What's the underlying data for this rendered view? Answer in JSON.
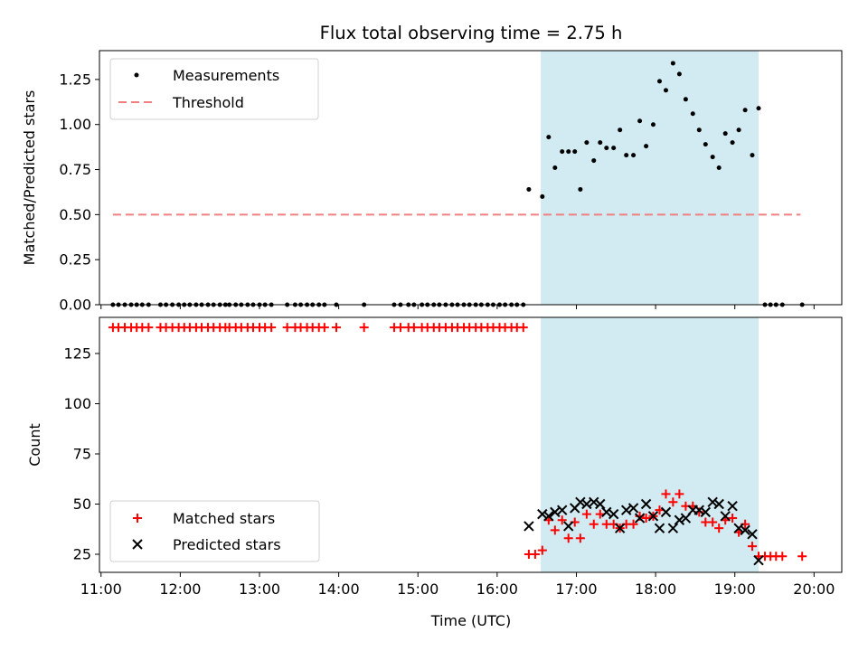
{
  "title": "Flux total observing time = 2.75 h",
  "colors": {
    "measure": "#000000",
    "threshold": "#f08080",
    "matched": "#ff0000",
    "predicted": "#000000",
    "band": "#add8e6"
  },
  "x_axis": {
    "label": "Time (UTC)",
    "range_hours": [
      10.98,
      20.35
    ],
    "ticks": [
      {
        "v": 11,
        "label": "11:00"
      },
      {
        "v": 12,
        "label": "12:00"
      },
      {
        "v": 13,
        "label": "13:00"
      },
      {
        "v": 14,
        "label": "14:00"
      },
      {
        "v": 15,
        "label": "15:00"
      },
      {
        "v": 16,
        "label": "16:00"
      },
      {
        "v": 17,
        "label": "17:00"
      },
      {
        "v": 18,
        "label": "18:00"
      },
      {
        "v": 19,
        "label": "19:00"
      },
      {
        "v": 20,
        "label": "20:00"
      }
    ]
  },
  "chart_data": [
    {
      "type": "scatter",
      "ylabel": "Matched/Predicted stars",
      "ylim": [
        0,
        1.41
      ],
      "yticks": [
        {
          "v": 0,
          "label": "0.00"
        },
        {
          "v": 0.25,
          "label": "0.25"
        },
        {
          "v": 0.5,
          "label": "0.50"
        },
        {
          "v": 0.75,
          "label": "0.75"
        },
        {
          "v": 1.0,
          "label": "1.00"
        },
        {
          "v": 1.25,
          "label": "1.25"
        }
      ],
      "observing_window": [
        16.55,
        19.3
      ],
      "threshold": {
        "name": "Threshold",
        "y": 0.5,
        "x": [
          11.15,
          19.83
        ]
      },
      "legend": [
        "Measurements",
        "Threshold"
      ],
      "legend_position": "top-left",
      "series": [
        {
          "name": "Measurements",
          "points": [
            [
              11.15,
              0
            ],
            [
              11.22,
              0
            ],
            [
              11.3,
              0
            ],
            [
              11.38,
              0
            ],
            [
              11.45,
              0
            ],
            [
              11.52,
              0
            ],
            [
              11.6,
              0
            ],
            [
              11.75,
              0
            ],
            [
              11.82,
              0
            ],
            [
              11.9,
              0
            ],
            [
              11.98,
              0
            ],
            [
              12.05,
              0
            ],
            [
              12.12,
              0
            ],
            [
              12.2,
              0
            ],
            [
              12.27,
              0
            ],
            [
              12.35,
              0
            ],
            [
              12.42,
              0
            ],
            [
              12.5,
              0
            ],
            [
              12.57,
              0
            ],
            [
              12.62,
              0
            ],
            [
              12.7,
              0
            ],
            [
              12.77,
              0
            ],
            [
              12.85,
              0
            ],
            [
              12.92,
              0
            ],
            [
              13.0,
              0
            ],
            [
              13.07,
              0
            ],
            [
              13.15,
              0
            ],
            [
              13.35,
              0
            ],
            [
              13.45,
              0
            ],
            [
              13.52,
              0
            ],
            [
              13.6,
              0
            ],
            [
              13.67,
              0
            ],
            [
              13.75,
              0
            ],
            [
              13.82,
              0
            ],
            [
              13.97,
              0
            ],
            [
              14.32,
              0
            ],
            [
              14.7,
              0
            ],
            [
              14.78,
              0
            ],
            [
              14.88,
              0
            ],
            [
              14.95,
              0
            ],
            [
              15.05,
              0
            ],
            [
              15.12,
              0
            ],
            [
              15.2,
              0
            ],
            [
              15.27,
              0
            ],
            [
              15.35,
              0
            ],
            [
              15.43,
              0
            ],
            [
              15.5,
              0
            ],
            [
              15.58,
              0
            ],
            [
              15.65,
              0
            ],
            [
              15.73,
              0
            ],
            [
              15.8,
              0
            ],
            [
              15.88,
              0
            ],
            [
              15.95,
              0
            ],
            [
              16.03,
              0
            ],
            [
              16.1,
              0
            ],
            [
              16.18,
              0
            ],
            [
              16.25,
              0
            ],
            [
              16.33,
              0
            ],
            [
              16.4,
              0.64
            ],
            [
              16.57,
              0.6
            ],
            [
              16.65,
              0.93
            ],
            [
              16.73,
              0.76
            ],
            [
              16.82,
              0.85
            ],
            [
              16.9,
              0.85
            ],
            [
              16.98,
              0.85
            ],
            [
              17.05,
              0.64
            ],
            [
              17.13,
              0.9
            ],
            [
              17.22,
              0.8
            ],
            [
              17.3,
              0.9
            ],
            [
              17.38,
              0.87
            ],
            [
              17.47,
              0.87
            ],
            [
              17.55,
              0.97
            ],
            [
              17.63,
              0.83
            ],
            [
              17.72,
              0.83
            ],
            [
              17.8,
              1.02
            ],
            [
              17.88,
              0.88
            ],
            [
              17.97,
              1.0
            ],
            [
              18.05,
              1.24
            ],
            [
              18.13,
              1.19
            ],
            [
              18.22,
              1.34
            ],
            [
              18.3,
              1.28
            ],
            [
              18.38,
              1.14
            ],
            [
              18.47,
              1.06
            ],
            [
              18.55,
              0.97
            ],
            [
              18.63,
              0.89
            ],
            [
              18.72,
              0.82
            ],
            [
              18.8,
              0.76
            ],
            [
              18.88,
              0.95
            ],
            [
              18.97,
              0.9
            ],
            [
              19.05,
              0.97
            ],
            [
              19.13,
              1.08
            ],
            [
              19.22,
              0.83
            ],
            [
              19.3,
              1.09
            ],
            [
              19.38,
              0
            ],
            [
              19.45,
              0
            ],
            [
              19.52,
              0
            ],
            [
              19.6,
              0
            ],
            [
              19.85,
              0
            ]
          ]
        }
      ]
    },
    {
      "type": "scatter",
      "ylabel": "Count",
      "xlabel": "Time (UTC)",
      "ylim": [
        16,
        143
      ],
      "yticks": [
        {
          "v": 25,
          "label": "25"
        },
        {
          "v": 50,
          "label": "50"
        },
        {
          "v": 75,
          "label": "75"
        },
        {
          "v": 100,
          "label": "100"
        },
        {
          "v": 125,
          "label": "125"
        }
      ],
      "observing_window": [
        16.55,
        19.3
      ],
      "legend": [
        "Matched stars",
        "Predicted stars"
      ],
      "legend_position": "bottom-left",
      "series": [
        {
          "name": "Matched stars",
          "points": [
            [
              11.15,
              138
            ],
            [
              11.22,
              138
            ],
            [
              11.3,
              138
            ],
            [
              11.38,
              138
            ],
            [
              11.45,
              138
            ],
            [
              11.52,
              138
            ],
            [
              11.6,
              138
            ],
            [
              11.75,
              138
            ],
            [
              11.82,
              138
            ],
            [
              11.9,
              138
            ],
            [
              11.98,
              138
            ],
            [
              12.05,
              138
            ],
            [
              12.12,
              138
            ],
            [
              12.2,
              138
            ],
            [
              12.27,
              138
            ],
            [
              12.35,
              138
            ],
            [
              12.42,
              138
            ],
            [
              12.5,
              138
            ],
            [
              12.57,
              138
            ],
            [
              12.62,
              138
            ],
            [
              12.7,
              138
            ],
            [
              12.77,
              138
            ],
            [
              12.85,
              138
            ],
            [
              12.92,
              138
            ],
            [
              13.0,
              138
            ],
            [
              13.07,
              138
            ],
            [
              13.15,
              138
            ],
            [
              13.35,
              138
            ],
            [
              13.45,
              138
            ],
            [
              13.52,
              138
            ],
            [
              13.6,
              138
            ],
            [
              13.67,
              138
            ],
            [
              13.75,
              138
            ],
            [
              13.82,
              138
            ],
            [
              13.97,
              138
            ],
            [
              14.32,
              138
            ],
            [
              14.7,
              138
            ],
            [
              14.78,
              138
            ],
            [
              14.88,
              138
            ],
            [
              14.95,
              138
            ],
            [
              15.05,
              138
            ],
            [
              15.12,
              138
            ],
            [
              15.2,
              138
            ],
            [
              15.27,
              138
            ],
            [
              15.35,
              138
            ],
            [
              15.43,
              138
            ],
            [
              15.5,
              138
            ],
            [
              15.58,
              138
            ],
            [
              15.65,
              138
            ],
            [
              15.73,
              138
            ],
            [
              15.8,
              138
            ],
            [
              15.88,
              138
            ],
            [
              15.95,
              138
            ],
            [
              16.03,
              138
            ],
            [
              16.1,
              138
            ],
            [
              16.18,
              138
            ],
            [
              16.25,
              138
            ],
            [
              16.33,
              138
            ],
            [
              16.4,
              25
            ],
            [
              16.48,
              25
            ],
            [
              16.57,
              27
            ],
            [
              16.65,
              42
            ],
            [
              16.73,
              37
            ],
            [
              16.82,
              42
            ],
            [
              16.9,
              33
            ],
            [
              16.98,
              41
            ],
            [
              17.05,
              33
            ],
            [
              17.13,
              45
            ],
            [
              17.22,
              40
            ],
            [
              17.3,
              45
            ],
            [
              17.38,
              40
            ],
            [
              17.47,
              40
            ],
            [
              17.55,
              38
            ],
            [
              17.63,
              40
            ],
            [
              17.72,
              40
            ],
            [
              17.8,
              44
            ],
            [
              17.88,
              43
            ],
            [
              17.97,
              44
            ],
            [
              18.05,
              47
            ],
            [
              18.13,
              55
            ],
            [
              18.22,
              51
            ],
            [
              18.3,
              55
            ],
            [
              18.38,
              49
            ],
            [
              18.47,
              49
            ],
            [
              18.55,
              46
            ],
            [
              18.63,
              41
            ],
            [
              18.72,
              41
            ],
            [
              18.8,
              38
            ],
            [
              18.88,
              42
            ],
            [
              18.97,
              43
            ],
            [
              19.05,
              36
            ],
            [
              19.13,
              40
            ],
            [
              19.22,
              29
            ],
            [
              19.3,
              24
            ],
            [
              19.38,
              24
            ],
            [
              19.45,
              24
            ],
            [
              19.52,
              24
            ],
            [
              19.6,
              24
            ],
            [
              19.85,
              24
            ]
          ]
        },
        {
          "name": "Predicted stars",
          "points": [
            [
              16.4,
              39
            ],
            [
              16.57,
              45
            ],
            [
              16.65,
              44
            ],
            [
              16.73,
              46
            ],
            [
              16.82,
              47
            ],
            [
              16.9,
              39
            ],
            [
              16.98,
              48
            ],
            [
              17.05,
              51
            ],
            [
              17.13,
              50
            ],
            [
              17.22,
              51
            ],
            [
              17.3,
              50
            ],
            [
              17.38,
              46
            ],
            [
              17.47,
              45
            ],
            [
              17.55,
              38
            ],
            [
              17.63,
              47
            ],
            [
              17.72,
              48
            ],
            [
              17.8,
              43
            ],
            [
              17.88,
              50
            ],
            [
              17.97,
              44
            ],
            [
              18.05,
              38
            ],
            [
              18.13,
              46
            ],
            [
              18.22,
              38
            ],
            [
              18.3,
              42
            ],
            [
              18.38,
              43
            ],
            [
              18.47,
              47
            ],
            [
              18.55,
              47
            ],
            [
              18.63,
              46
            ],
            [
              18.72,
              51
            ],
            [
              18.8,
              50
            ],
            [
              18.88,
              44
            ],
            [
              18.97,
              49
            ],
            [
              19.05,
              38
            ],
            [
              19.13,
              37
            ],
            [
              19.22,
              35
            ],
            [
              19.3,
              22
            ]
          ]
        }
      ]
    }
  ]
}
